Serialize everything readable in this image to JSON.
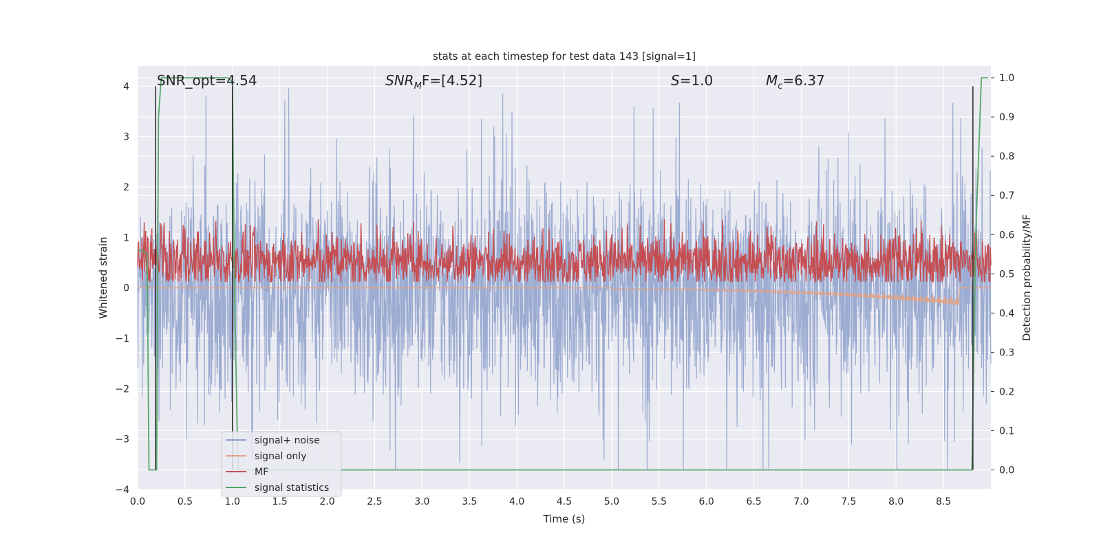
{
  "chart_data": {
    "type": "line",
    "title": "stats at each timestep for test data 143 [signal=1]",
    "xlabel": "Time (s)",
    "ylabel_left": "Whitened strain",
    "ylabel_right": "Detection probability/MF",
    "xlim": [
      0,
      9.0
    ],
    "ylim_left": [
      -4.0,
      4.4
    ],
    "ylim_right": [
      -0.05,
      1.03
    ],
    "x_ticks": [
      "0.0",
      "0.5",
      "1.0",
      "1.5",
      "2.0",
      "2.5",
      "3.0",
      "3.5",
      "4.0",
      "4.5",
      "5.0",
      "5.5",
      "6.0",
      "6.5",
      "7.0",
      "7.5",
      "8.0",
      "8.5"
    ],
    "y_ticks_left": [
      "4",
      "3",
      "2",
      "1",
      "0",
      "−1",
      "−2",
      "−3",
      "−4"
    ],
    "y_ticks_right": [
      "1.0",
      "0.9",
      "0.8",
      "0.7",
      "0.6",
      "0.5",
      "0.4",
      "0.3",
      "0.2",
      "0.1",
      "0.0"
    ],
    "grid": true,
    "annotations": {
      "snr_opt": "SNR_opt=4.54",
      "snr_mf_main": "SNR",
      "snr_mf_sub": "M",
      "snr_mf_tail": "F=[4.52]",
      "s_main": "S",
      "s_tail": "=1.0",
      "mc_main": "M",
      "mc_sub": "c",
      "mc_tail": "=6.37"
    },
    "legend_position": "lower-left",
    "series": [
      {
        "name": "signal+ noise",
        "color": "#8da0cb",
        "description_values": "noise band mostly between -2.5 and 2.5, peaks to about 4.0 and -3.6"
      },
      {
        "name": "signal only",
        "color": "#e1a386",
        "description_values": "near 0 until ~5.5 s, chirp growing to amplitude about -0.35 at 8.65 s"
      },
      {
        "name": "MF",
        "color": "#c44e52",
        "description_values": "noisy band between about 0.0 and 0.85 across the time range"
      },
      {
        "name": "signal statistics",
        "color": "#55a868",
        "points": [
          [
            0,
            0.56
          ],
          [
            0.05,
            0.56
          ],
          [
            0.1,
            0.55
          ],
          [
            0.12,
            0.0
          ],
          [
            0.18,
            0.0
          ],
          [
            0.2,
            0.0
          ],
          [
            0.22,
            0.9
          ],
          [
            0.25,
            1.0
          ],
          [
            0.3,
            1.0
          ],
          [
            0.95,
            1.0
          ],
          [
            1.0,
            0.99
          ],
          [
            1.02,
            0.5
          ],
          [
            1.05,
            0.1
          ],
          [
            1.06,
            0.0
          ],
          [
            1.2,
            0.0
          ],
          [
            8.8,
            0.0
          ],
          [
            8.82,
            0.3
          ],
          [
            8.84,
            0.6
          ],
          [
            8.9,
            1.0
          ],
          [
            8.97,
            1.0
          ]
        ]
      }
    ],
    "vertical_markers": [
      0.19,
      1.0,
      8.81
    ]
  }
}
